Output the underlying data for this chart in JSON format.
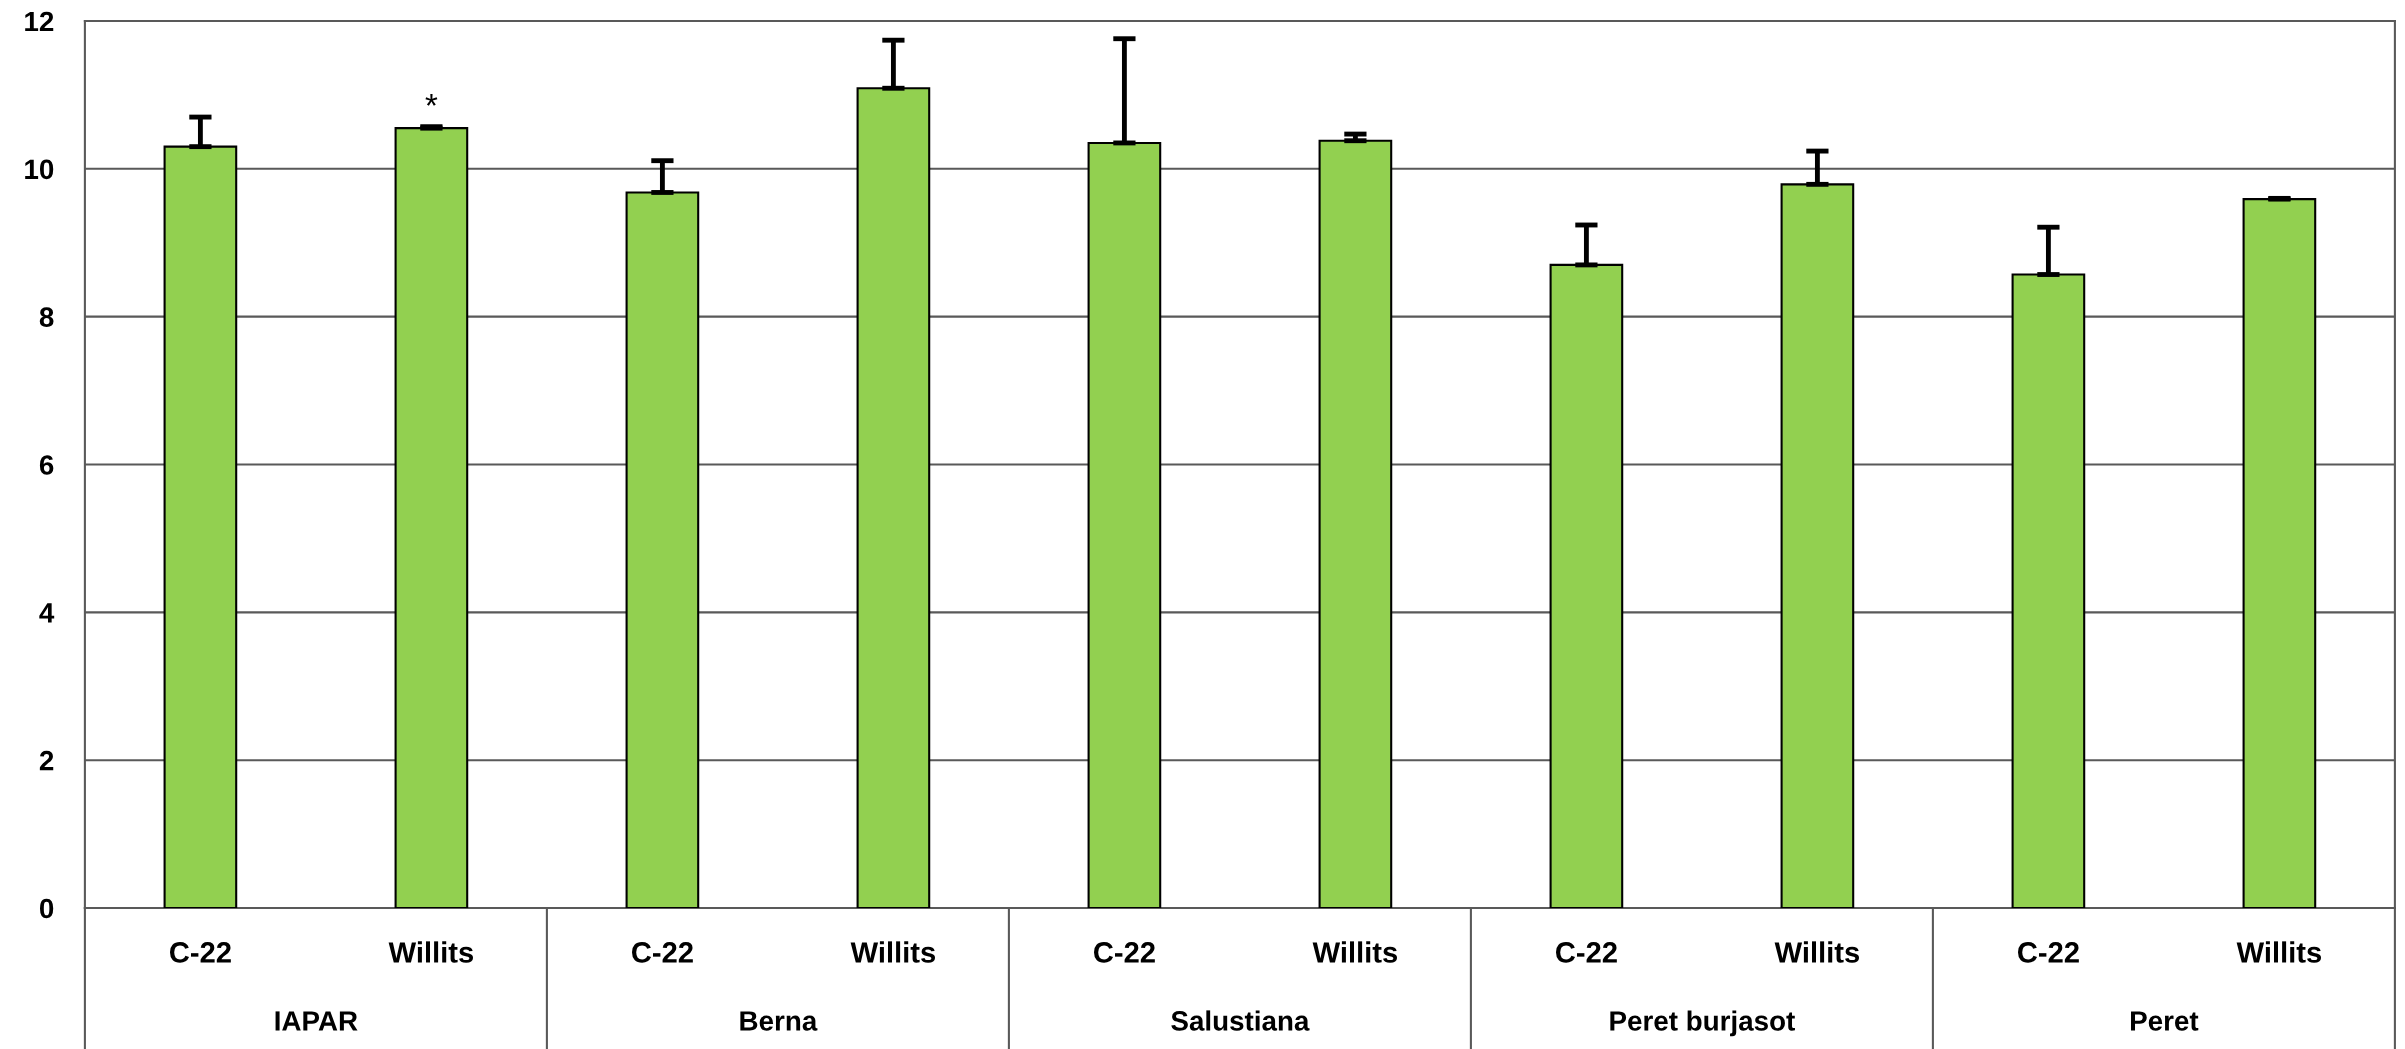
{
  "chart_data": {
    "type": "bar",
    "categories": [
      "C-22",
      "Willits",
      "C-22",
      "Willits",
      "C-22",
      "Willits",
      "C-22",
      "Willits",
      "C-22",
      "Willits"
    ],
    "values": [
      10.3,
      10.55,
      9.68,
      11.09,
      10.35,
      10.38,
      8.7,
      9.79,
      8.57,
      9.59
    ],
    "errors": [
      [
        10.3,
        10.7
      ],
      [
        10.55,
        10.57
      ],
      [
        9.68,
        10.11
      ],
      [
        11.09,
        11.74
      ],
      [
        10.35,
        11.76
      ],
      [
        10.38,
        10.47
      ],
      [
        8.7,
        9.24
      ],
      [
        9.79,
        10.24
      ],
      [
        8.57,
        9.21
      ],
      [
        9.59,
        9.6
      ]
    ],
    "value_labels": [
      null,
      "*",
      null,
      null,
      null,
      null,
      null,
      null,
      null,
      null
    ],
    "color": "#92d050",
    "annotations": [
      "IAPAR",
      "Berna",
      "Salustiana",
      "Peret burjasot",
      "Peret"
    ],
    "ylim": [
      0,
      12
    ],
    "yticks": [
      0,
      2,
      4,
      6,
      8,
      10,
      12
    ],
    "grid": "y",
    "legend": false
  }
}
